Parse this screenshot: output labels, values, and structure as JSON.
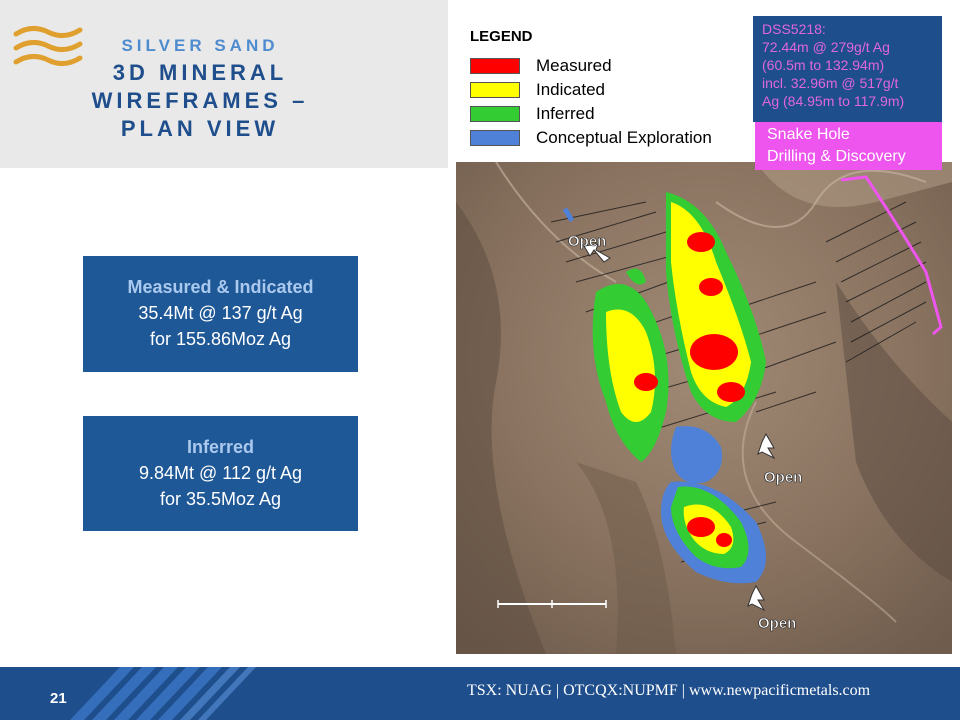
{
  "title": {
    "line1": "SILVER SAND",
    "line2": "3D MINERAL",
    "line3": "WIREFRAMES –",
    "line4": "PLAN VIEW"
  },
  "measured_indicated": {
    "heading": "Measured & Indicated",
    "tonnage": "35.4Mt @ 137 g/t Ag",
    "contained": "for 155.86Moz Ag"
  },
  "inferred": {
    "heading": "Inferred",
    "tonnage": "9.84Mt @ 112 g/t Ag",
    "contained": "for 35.5Moz Ag"
  },
  "legend": {
    "title": "LEGEND",
    "items": [
      {
        "label": "Measured",
        "color": "#ff0000"
      },
      {
        "label": "Indicated",
        "color": "#ffff00"
      },
      {
        "label": "Inferred",
        "color": "#33cc33"
      },
      {
        "label": "Conceptual Exploration",
        "color": "#4f81d9"
      }
    ]
  },
  "drillhole": {
    "lines": [
      "DSS5218:",
      "72.44m @ 279g/t Ag",
      "(60.5m to 132.94m)",
      "incl. 32.96m @ 517g/t",
      "Ag (84.95m to 117.9m)"
    ]
  },
  "snake_hole": {
    "line1": "Snake Hole",
    "line2": "Drilling & Discovery"
  },
  "map": {
    "open_labels": [
      "Open",
      "Open",
      "Open"
    ]
  },
  "footer": {
    "page_number": "21",
    "text": "TSX: NUAG | OTCQX:NUPMF | www.newpacificmetals.com"
  },
  "colors": {
    "brand_blue": "#1f4e8c",
    "box_blue": "#1f5896",
    "accent_magenta": "#ee55ee"
  }
}
